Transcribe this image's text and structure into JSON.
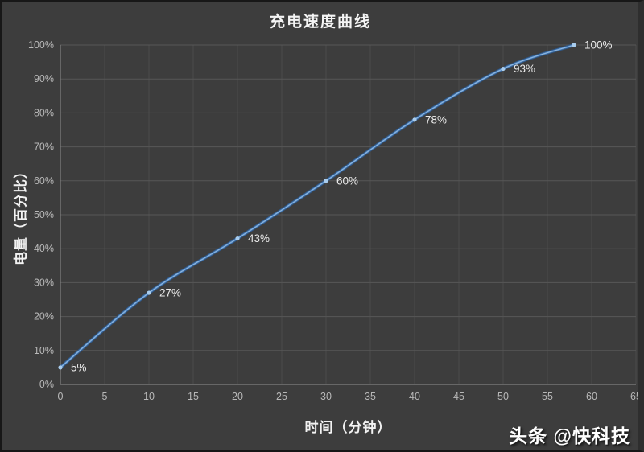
{
  "title": "充电速度曲线",
  "watermark": "头条 @快科技",
  "colors": {
    "background": "#3d3d3d",
    "frame_border": "#171717",
    "grid_horizontal": "#575757",
    "grid_vertical": "#4b4b4b",
    "axis_line": "#818181",
    "line_outer": "#2e5a8f",
    "line_mid": "#4f83bd",
    "line_inner": "#9cc3e8",
    "marker": "#a9cdee",
    "tick_label": "#b8b8b8",
    "data_label": "#ececec",
    "title_color": "#f5f5f5"
  },
  "chart_data": {
    "type": "line",
    "title": "充电速度曲线",
    "xlabel": "时间（分钟）",
    "ylabel": "电量（百分比）",
    "x": [
      0,
      10,
      20,
      30,
      40,
      50,
      58
    ],
    "y": [
      5,
      27,
      43,
      60,
      78,
      93,
      100
    ],
    "data_labels": [
      "5%",
      "27%",
      "43%",
      "60%",
      "78%",
      "93%",
      "100%"
    ],
    "x_ticks": [
      0,
      5,
      10,
      15,
      20,
      25,
      30,
      35,
      40,
      45,
      50,
      55,
      60,
      65
    ],
    "y_ticks": [
      "0%",
      "10%",
      "20%",
      "30%",
      "40%",
      "50%",
      "60%",
      "70%",
      "80%",
      "90%",
      "100%"
    ],
    "y_tick_values": [
      0,
      10,
      20,
      30,
      40,
      50,
      60,
      70,
      80,
      90,
      100
    ],
    "xlim": [
      0,
      65
    ],
    "ylim": [
      0,
      100
    ],
    "grid": true,
    "smooth": true,
    "legend": false
  }
}
